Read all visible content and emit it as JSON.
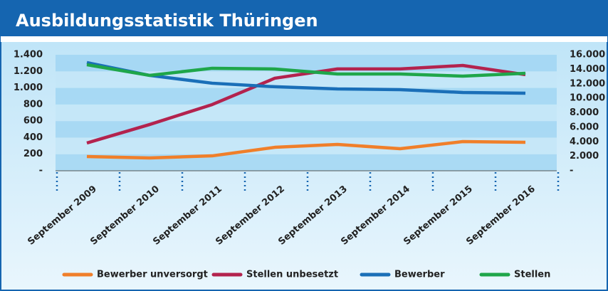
{
  "chart_data": {
    "type": "line",
    "title": "Ausbildungsstatistik Thüringen",
    "categories": [
      "September 2009",
      "September 2010",
      "September 2011",
      "September 2012",
      "September 2013",
      "September 2014",
      "September 2015",
      "September 2016"
    ],
    "series": [
      {
        "name": "Bewerber unversorgt",
        "color": "#f07f2a",
        "values": [
          172,
          155,
          180,
          283,
          318,
          266,
          352,
          344
        ]
      },
      {
        "name": "Stellen unbesetzt",
        "color": "#b3234e",
        "values": [
          335,
          558,
          799,
          1117,
          1229,
          1229,
          1271,
          1160
        ]
      },
      {
        "name": "Bewerber",
        "color": "#1a6fb8",
        "axis": "y2",
        "values": [
          14920,
          13160,
          12080,
          11590,
          11290,
          11190,
          10800,
          10700
        ]
      },
      {
        "name": "Stellen",
        "color": "#1fa64a",
        "axis": "y2",
        "values": [
          14630,
          13160,
          14140,
          14040,
          13350,
          13350,
          13060,
          13450
        ]
      }
    ],
    "ylim": [
      0,
      1400
    ],
    "yticks": [
      {
        "value": 0,
        "label": "-"
      },
      200,
      400,
      600,
      800,
      {
        "value": 1000,
        "label": "1.000"
      },
      {
        "value": 1200,
        "label": "1.200"
      },
      {
        "value": 1400,
        "label": "1.400"
      }
    ],
    "y2lim": [
      0,
      16000
    ],
    "y2ticks": [
      {
        "value": 0,
        "label": "-"
      },
      {
        "value": 2000,
        "label": "2.000"
      },
      {
        "value": 4000,
        "label": "4.000"
      },
      {
        "value": 6000,
        "label": "6.000"
      },
      {
        "value": 8000,
        "label": "8.000"
      },
      {
        "value": 10000,
        "label": "10.000"
      },
      {
        "value": 12000,
        "label": "12.000"
      },
      {
        "value": 14000,
        "label": "14.000"
      },
      {
        "value": 16000,
        "label": "16.000"
      }
    ],
    "legend": "bottom"
  }
}
